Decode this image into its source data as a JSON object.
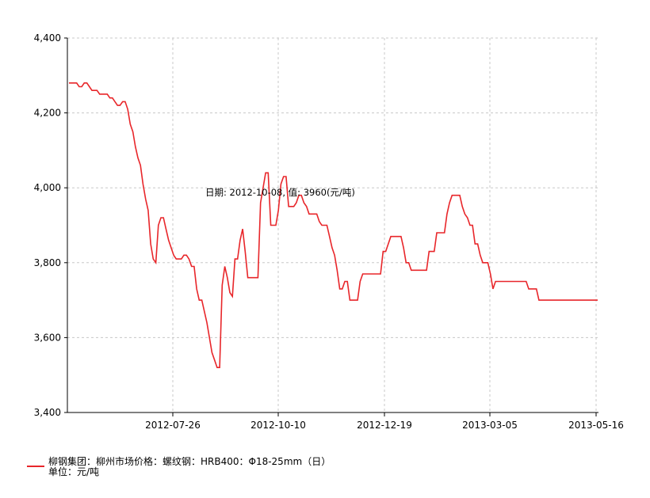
{
  "chart_data": {
    "type": "line",
    "title": "",
    "xlabel": "",
    "ylabel": "",
    "ylim": [
      3400,
      4400
    ],
    "y_ticks": [
      3400,
      3600,
      3800,
      4000,
      4200,
      4400
    ],
    "y_tick_labels": [
      "3,400",
      "3,600",
      "3,800",
      "4,000",
      "4,200",
      "4,400"
    ],
    "x_tick_labels": [
      "2012-07-26",
      "2012-10-10",
      "2012-12-19",
      "2013-03-05",
      "2013-05-16"
    ],
    "grid": true,
    "legend_position": "bottom-left",
    "series": [
      {
        "name": "柳钢集团：柳州市场价格：螺纹钢：HRB400：Φ18-25mm（日）",
        "color": "#e8262a",
        "values": [
          4280,
          4280,
          4280,
          4280,
          4270,
          4270,
          4280,
          4280,
          4270,
          4260,
          4260,
          4260,
          4250,
          4250,
          4250,
          4250,
          4240,
          4240,
          4230,
          4220,
          4220,
          4230,
          4230,
          4210,
          4170,
          4150,
          4110,
          4080,
          4060,
          4010,
          3970,
          3940,
          3850,
          3810,
          3800,
          3900,
          3920,
          3920,
          3890,
          3860,
          3840,
          3820,
          3810,
          3810,
          3810,
          3820,
          3820,
          3810,
          3790,
          3790,
          3730,
          3700,
          3700,
          3670,
          3640,
          3600,
          3560,
          3540,
          3520,
          3520,
          3740,
          3790,
          3760,
          3720,
          3710,
          3810,
          3810,
          3860,
          3890,
          3830,
          3760,
          3760,
          3760,
          3760,
          3760,
          3960,
          4000,
          4040,
          4040,
          3900,
          3900,
          3900,
          3940,
          4010,
          4030,
          4030,
          3950,
          3950,
          3950,
          3960,
          3980,
          3980,
          3960,
          3950,
          3930,
          3930,
          3930,
          3930,
          3910,
          3900,
          3900,
          3900,
          3870,
          3840,
          3820,
          3780,
          3730,
          3730,
          3750,
          3750,
          3700,
          3700,
          3700,
          3700,
          3750,
          3770,
          3770,
          3770,
          3770,
          3770,
          3770,
          3770,
          3770,
          3830,
          3830,
          3850,
          3870,
          3870,
          3870,
          3870,
          3870,
          3840,
          3800,
          3800,
          3780,
          3780,
          3780,
          3780,
          3780,
          3780,
          3780,
          3830,
          3830,
          3830,
          3880,
          3880,
          3880,
          3880,
          3930,
          3960,
          3980,
          3980,
          3980,
          3980,
          3950,
          3930,
          3920,
          3900,
          3900,
          3850,
          3850,
          3820,
          3800,
          3800,
          3800,
          3770,
          3730,
          3750,
          3750,
          3750,
          3750,
          3750,
          3750,
          3750,
          3750,
          3750,
          3750,
          3750,
          3750,
          3750,
          3730,
          3730,
          3730,
          3730,
          3700,
          3700,
          3700,
          3700,
          3700,
          3700,
          3700,
          3700,
          3700,
          3700,
          3700,
          3700,
          3700,
          3700,
          3700,
          3700,
          3700,
          3700,
          3700,
          3700,
          3700,
          3700,
          3700,
          3700
        ]
      }
    ]
  },
  "tooltip": {
    "text": "日期: 2012-10-08, 值: 3960(元/吨)"
  },
  "legend": {
    "name_label": "柳钢集团：柳州市场价格：螺纹钢：HRB400：Φ18-25mm（日）",
    "unit_label": "单位：元/吨"
  }
}
